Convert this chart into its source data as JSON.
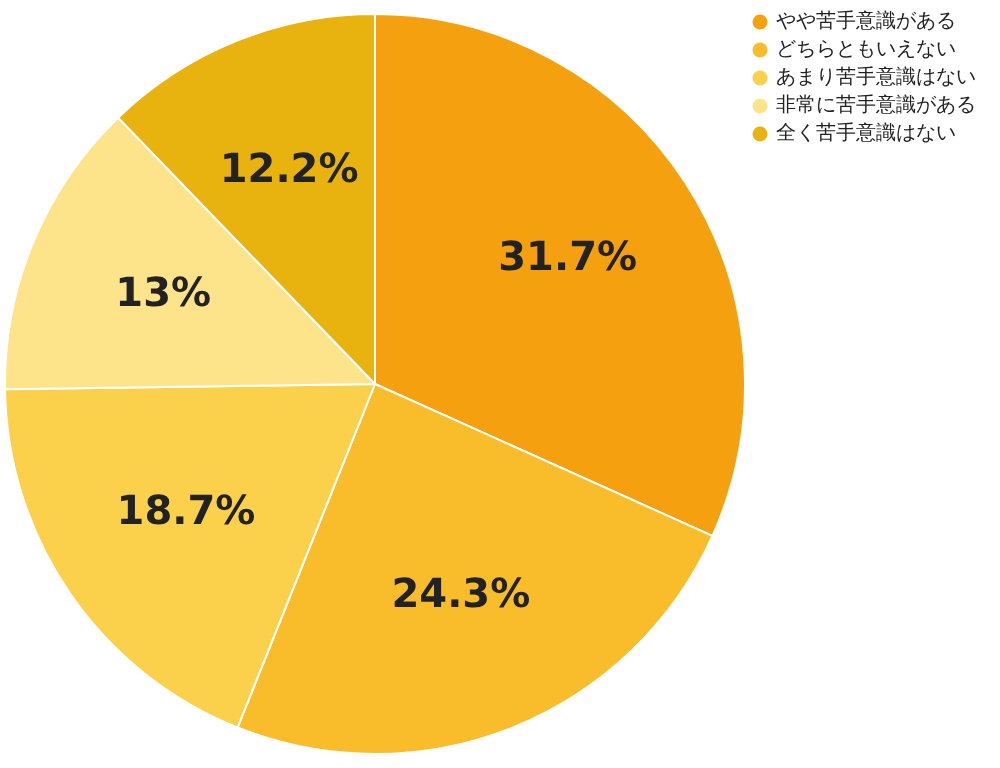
{
  "chart_data": {
    "type": "pie",
    "categories": [
      "やや苦手意識がある",
      "どちらともいえない",
      "あまり苦手意識はない",
      "非常に苦手意識がある",
      "全く苦手意識はない"
    ],
    "values": [
      31.7,
      24.3,
      18.7,
      13,
      12.2
    ],
    "colors": [
      "#f5a00f",
      "#f9bc2a",
      "#fbd04a",
      "#fde48a",
      "#e8b20f"
    ],
    "legend": "top right",
    "value_labels": [
      "31.7%",
      "24.3%",
      "18.7%",
      "13%",
      "12.2%"
    ]
  }
}
